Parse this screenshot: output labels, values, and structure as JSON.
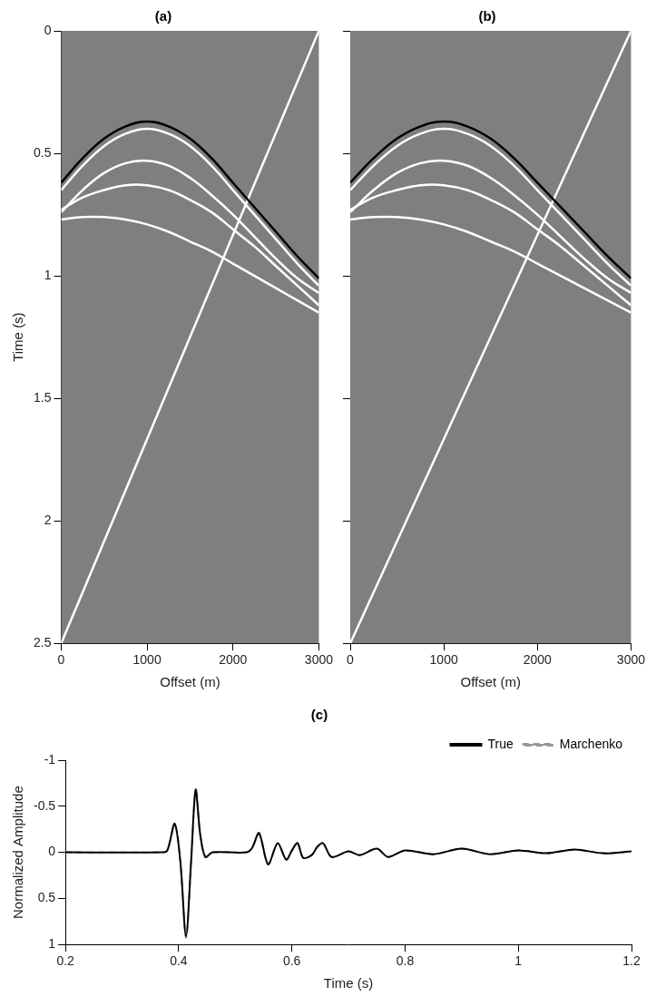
{
  "chart_data": [
    {
      "type": "line",
      "title": "(a)",
      "x_label": "Offset (m)",
      "y_label": "Time (s)",
      "xlim": [
        0,
        3000
      ],
      "xticks": [
        0,
        1000,
        2000,
        3000
      ],
      "ylim": [
        0,
        2.5
      ],
      "yticks": [
        0,
        0.5,
        1,
        1.5,
        2,
        2.5
      ],
      "grid": false,
      "series": [
        {
          "color": "#000000",
          "x": [
            0,
            250,
            500,
            750,
            1000,
            1250,
            1500,
            1750,
            2000,
            2250,
            2500,
            2750,
            3000
          ],
          "values": [
            0.62,
            0.52,
            0.44,
            0.39,
            0.37,
            0.39,
            0.44,
            0.52,
            0.62,
            0.72,
            0.82,
            0.92,
            1.01
          ]
        },
        {
          "color": "#ffffff",
          "x": [
            0,
            250,
            500,
            750,
            1000,
            1250,
            1500,
            1750,
            2000,
            2250,
            2500,
            2750,
            3000
          ],
          "values": [
            0.65,
            0.55,
            0.47,
            0.42,
            0.4,
            0.42,
            0.47,
            0.55,
            0.65,
            0.75,
            0.85,
            0.95,
            1.04
          ]
        },
        {
          "color": "#ffffff",
          "x": [
            0,
            250,
            500,
            750,
            1000,
            1250,
            1500,
            1750,
            2000,
            2250,
            2500,
            2750,
            3000
          ],
          "values": [
            0.74,
            0.65,
            0.58,
            0.54,
            0.53,
            0.55,
            0.6,
            0.67,
            0.75,
            0.84,
            0.93,
            1.01,
            1.07
          ]
        },
        {
          "color": "#ffffff",
          "x": [
            0,
            250,
            500,
            750,
            1000,
            1250,
            1500,
            1750,
            2000,
            2250,
            2500,
            2750,
            3000
          ],
          "values": [
            0.73,
            0.68,
            0.65,
            0.63,
            0.63,
            0.65,
            0.69,
            0.74,
            0.81,
            0.88,
            0.96,
            1.04,
            1.12
          ]
        },
        {
          "color": "#ffffff",
          "x": [
            0,
            250,
            500,
            750,
            1000,
            1250,
            1500,
            1750,
            2000,
            2250,
            2500,
            2750,
            3000
          ],
          "values": [
            0.77,
            0.76,
            0.76,
            0.77,
            0.79,
            0.82,
            0.86,
            0.9,
            0.95,
            1.0,
            1.05,
            1.1,
            1.15
          ]
        },
        {
          "color": "#ffffff",
          "x": [
            0,
            3000
          ],
          "values": [
            2.5,
            0
          ]
        }
      ]
    },
    {
      "type": "line",
      "title": "(b)",
      "x_label": "Offset (m)",
      "tick_labels": "x",
      "xlim": [
        0,
        3000
      ],
      "xticks": [
        0,
        1000,
        2000,
        3000
      ],
      "ylim": [
        0,
        2.5
      ],
      "yticks": [
        0,
        0.5,
        1,
        1.5,
        2,
        2.5
      ],
      "grid": false,
      "series": [
        {
          "color": "#000000",
          "x": [
            0,
            250,
            500,
            750,
            1000,
            1250,
            1500,
            1750,
            2000,
            2250,
            2500,
            2750,
            3000
          ],
          "values": [
            0.62,
            0.52,
            0.44,
            0.39,
            0.37,
            0.39,
            0.44,
            0.52,
            0.62,
            0.72,
            0.82,
            0.92,
            1.01
          ]
        },
        {
          "color": "#ffffff",
          "x": [
            0,
            250,
            500,
            750,
            1000,
            1250,
            1500,
            1750,
            2000,
            2250,
            2500,
            2750,
            3000
          ],
          "values": [
            0.65,
            0.55,
            0.47,
            0.42,
            0.4,
            0.42,
            0.47,
            0.55,
            0.65,
            0.75,
            0.85,
            0.95,
            1.04
          ]
        },
        {
          "color": "#ffffff",
          "x": [
            0,
            250,
            500,
            750,
            1000,
            1250,
            1500,
            1750,
            2000,
            2250,
            2500,
            2750,
            3000
          ],
          "values": [
            0.74,
            0.65,
            0.58,
            0.54,
            0.53,
            0.55,
            0.6,
            0.67,
            0.75,
            0.84,
            0.93,
            1.01,
            1.07
          ]
        },
        {
          "color": "#ffffff",
          "x": [
            0,
            250,
            500,
            750,
            1000,
            1250,
            1500,
            1750,
            2000,
            2250,
            2500,
            2750,
            3000
          ],
          "values": [
            0.73,
            0.68,
            0.65,
            0.63,
            0.63,
            0.65,
            0.69,
            0.74,
            0.81,
            0.88,
            0.96,
            1.04,
            1.12
          ]
        },
        {
          "color": "#ffffff",
          "x": [
            0,
            250,
            500,
            750,
            1000,
            1250,
            1500,
            1750,
            2000,
            2250,
            2500,
            2750,
            3000
          ],
          "values": [
            0.77,
            0.76,
            0.76,
            0.77,
            0.79,
            0.82,
            0.86,
            0.9,
            0.95,
            1.0,
            1.05,
            1.1,
            1.15
          ]
        },
        {
          "color": "#ffffff",
          "x": [
            0,
            3000
          ],
          "values": [
            2.5,
            0
          ]
        }
      ]
    },
    {
      "type": "line",
      "title": "(c)",
      "x_label": "Time (s)",
      "y_label": "Normalized Amplitude",
      "xlim": [
        0.2,
        1.2
      ],
      "xticks": [
        0.2,
        0.4,
        0.6,
        0.8,
        1,
        1.2
      ],
      "ylim": [
        -1,
        1
      ],
      "yticks": [
        -1,
        -0.5,
        0,
        0.5,
        1
      ],
      "grid": false,
      "legend": "top-right",
      "x": [
        0.2,
        0.37,
        0.38,
        0.393,
        0.403,
        0.413,
        0.422,
        0.43,
        0.438,
        0.447,
        0.46,
        0.52,
        0.53,
        0.542,
        0.558,
        0.575,
        0.59,
        0.6,
        0.61,
        0.62,
        0.635,
        0.645,
        0.655,
        0.67,
        0.7,
        0.72,
        0.75,
        0.77,
        0.8,
        0.85,
        0.9,
        0.95,
        1.0,
        1.05,
        1.1,
        1.15,
        1.2
      ],
      "series": [
        {
          "name": "True",
          "color": "#000000",
          "line_style": "solid",
          "values": [
            0,
            0,
            -0.02,
            -0.31,
            0.1,
            0.91,
            0.1,
            -0.68,
            -0.2,
            0.05,
            0,
            0,
            -0.05,
            -0.21,
            0.13,
            -0.1,
            0.08,
            -0.02,
            -0.1,
            0.06,
            0.03,
            -0.06,
            -0.1,
            0.05,
            -0.01,
            0.03,
            -0.04,
            0.05,
            -0.02,
            0.02,
            -0.04,
            0.02,
            -0.02,
            0.01,
            -0.03,
            0.01,
            -0.01
          ]
        },
        {
          "name": "Marchenko",
          "color": "#999999",
          "line_style": "dashed",
          "values": [
            0,
            0,
            -0.02,
            -0.3,
            0.1,
            0.93,
            0.1,
            -0.67,
            -0.2,
            0.05,
            0,
            0,
            -0.05,
            -0.2,
            0.13,
            -0.1,
            0.08,
            -0.02,
            -0.1,
            0.06,
            0.03,
            -0.06,
            -0.1,
            0.05,
            -0.01,
            0.03,
            -0.04,
            0.05,
            -0.02,
            0.02,
            -0.04,
            0.02,
            -0.02,
            0.01,
            -0.03,
            0.01,
            -0.01
          ]
        }
      ]
    }
  ]
}
